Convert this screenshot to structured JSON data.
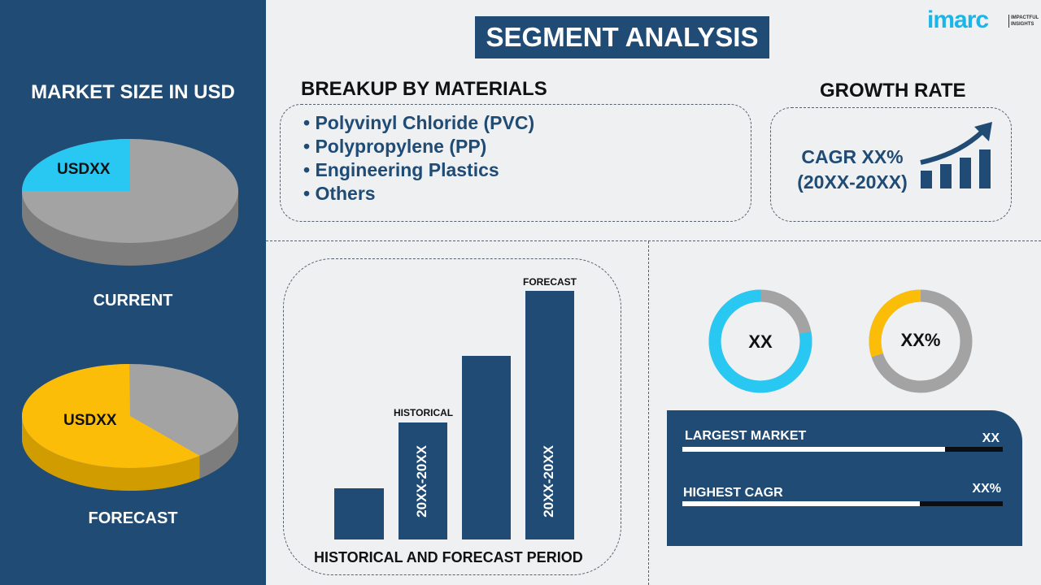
{
  "logo": {
    "brand": "imarc",
    "tagline": "IMPACTFUL INSIGHTS",
    "color": "#1ab6ea"
  },
  "colors": {
    "navy": "#1f4b74",
    "cyan": "#29c8f2",
    "yellow": "#fbbd08",
    "gray": "#a3a3a3"
  },
  "left": {
    "heading": "MARKET SIZE IN USD",
    "current": {
      "value": "USDXX",
      "label": "CURRENT",
      "highlight_share": 0.25
    },
    "forecast": {
      "value": "USDXX",
      "label": "FORECAST",
      "highlight_share": 0.61
    }
  },
  "title": "SEGMENT ANALYSIS",
  "materials": {
    "heading": "BREAKUP BY MATERIALS",
    "items": [
      "Polyvinyl Chloride (PVC)",
      "Polypropylene (PP)",
      "Engineering Plastics",
      "Others"
    ]
  },
  "growth": {
    "heading": "GROWTH RATE",
    "line1": "CAGR XX%",
    "line2": "(20XX-20XX)"
  },
  "period": {
    "historical_label": "HISTORICAL",
    "forecast_label": "FORECAST",
    "historical_range": "20XX-20XX",
    "forecast_range": "20XX-20XX",
    "caption": "HISTORICAL AND FORECAST PERIOD"
  },
  "donuts": [
    {
      "label": "XX",
      "share": 0.78,
      "color": "#29c8f2"
    },
    {
      "label": "XX%",
      "share": 0.3,
      "color": "#fbbd08"
    }
  ],
  "info": [
    {
      "label": "LARGEST MARKET",
      "value": "XX",
      "fill": 0.82
    },
    {
      "label": "HIGHEST CAGR",
      "value": "XX%",
      "fill": 0.74
    }
  ]
}
